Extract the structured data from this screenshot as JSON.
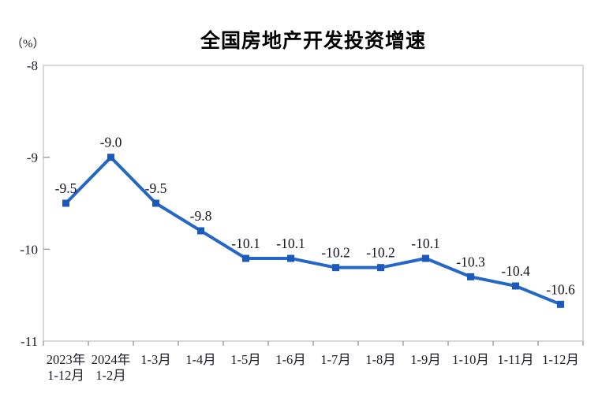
{
  "chart_data": {
    "type": "line",
    "title": "全国房地产开发投资增速",
    "unit_label": "（%）",
    "categories": [
      "2023年\n1-12月",
      "2024年\n1-2月",
      "1-3月",
      "1-4月",
      "1-5月",
      "1-6月",
      "1-7月",
      "1-8月",
      "1-9月",
      "1-10月",
      "1-11月",
      "1-12月"
    ],
    "values": [
      -9.5,
      -9.0,
      -9.5,
      -9.8,
      -10.1,
      -10.1,
      -10.2,
      -10.2,
      -10.1,
      -10.3,
      -10.4,
      -10.6
    ],
    "data_labels": [
      "-9.5",
      "-9.0",
      "-9.5",
      "-9.8",
      "-10.1",
      "-10.1",
      "-10.2",
      "-10.2",
      "-10.1",
      "-10.3",
      "-10.4",
      "-10.6"
    ],
    "xlabel": "",
    "ylabel": "（%）",
    "ylim": [
      -11,
      -8
    ],
    "y_ticks": [
      -8,
      -9,
      -10,
      -11
    ],
    "y_tick_labels": [
      "-8",
      "-9",
      "-10",
      "-11"
    ],
    "grid": false,
    "legend": false,
    "colors": {
      "line": "#2467C6",
      "marker": "#1B5ABB",
      "frame": "#c2c2c2",
      "tick": "#8f8f8f",
      "text": "#1a1a26",
      "data_label": "#14141f",
      "title": "#000000"
    }
  }
}
